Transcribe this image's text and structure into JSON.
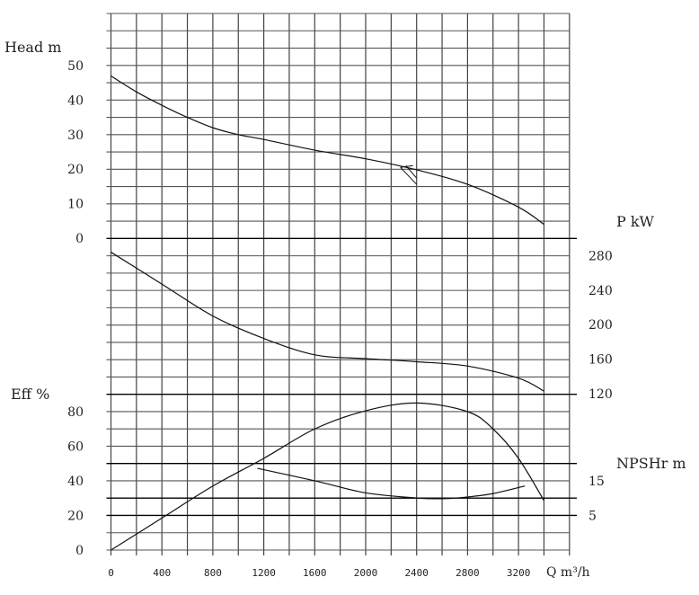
{
  "chart_data": {
    "type": "line",
    "title": "",
    "xlabel": "Q m³/h",
    "xlim": [
      0,
      3600
    ],
    "x_ticks": [
      0,
      400,
      800,
      1200,
      1600,
      2000,
      2400,
      2800,
      3200
    ],
    "grid": true,
    "axes": [
      {
        "id": "head",
        "label": "Head m",
        "side": "left",
        "ticks": [
          0,
          10,
          20,
          30,
          40,
          50
        ]
      },
      {
        "id": "power",
        "label": "P kW",
        "side": "right",
        "ticks": [
          120,
          160,
          200,
          240,
          280
        ]
      },
      {
        "id": "eff",
        "label": "Eff %",
        "side": "left",
        "ticks": [
          0,
          20,
          40,
          60,
          80
        ]
      },
      {
        "id": "npsh",
        "label": "NPSHr m",
        "side": "right",
        "ticks": [
          5,
          15
        ]
      }
    ],
    "series": [
      {
        "axis": "head",
        "x": [
          0,
          200,
          400,
          600,
          800,
          1000,
          1200,
          1600,
          2000,
          2400,
          2800,
          3200,
          3400
        ],
        "y": [
          47,
          42.4,
          38.5,
          35,
          32,
          30,
          28.6,
          25.5,
          23,
          19.8,
          15.6,
          9,
          4
        ]
      },
      {
        "axis": "power",
        "x": [
          0,
          400,
          800,
          1200,
          1600,
          2000,
          2400,
          2800,
          3200,
          3400
        ],
        "y": [
          284,
          247,
          210,
          184,
          165,
          160.6,
          157,
          152,
          138,
          123
        ]
      },
      {
        "axis": "eff",
        "x": [
          0,
          400,
          800,
          1200,
          1600,
          2000,
          2400,
          2800,
          3000,
          3200,
          3400
        ],
        "y": [
          0,
          18.5,
          37,
          53,
          70,
          80.5,
          85,
          80,
          70,
          53,
          28.6
        ]
      },
      {
        "axis": "npsh",
        "x": [
          1150,
          1600,
          2000,
          2400,
          2600,
          2800,
          3000,
          3250
        ],
        "y": [
          18.6,
          15,
          11.5,
          10,
          9.8,
          10.3,
          11.3,
          13.5
        ]
      }
    ],
    "duty_point": {
      "x": 2400,
      "head": 20
    }
  }
}
